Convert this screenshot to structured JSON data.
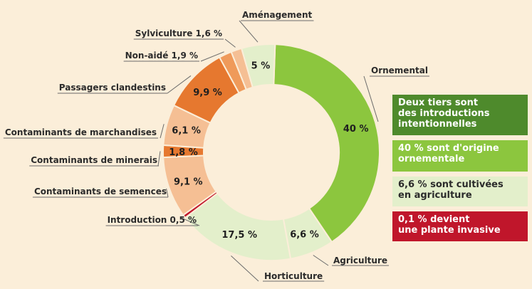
{
  "colors": {
    "background": "#fbeed9",
    "dark_green": "#4e8a2c",
    "green": "#8cc63e",
    "light_green": "#e3efcb",
    "red": "#c0162b",
    "dark_orange": "#e6782f",
    "orange": "#ef9a5a",
    "light_orange": "#f5bf94",
    "label_text": "#2b2b2b"
  },
  "chart_data": {
    "type": "pie",
    "variant": "donut",
    "title": "",
    "slices": [
      {
        "category": "Ornemental",
        "value": 40,
        "label": "40 %",
        "outer_label": "Ornemental",
        "color": "#8cc63e",
        "label_color": "#1f1f1f"
      },
      {
        "category": "Agriculture",
        "value": 6.6,
        "label": "6,6 %",
        "outer_label": "Agriculture",
        "color": "#e3efcb",
        "label_color": "#1f1f1f"
      },
      {
        "category": "Horticulture",
        "value": 17.5,
        "label": "17,5 %",
        "outer_label": "Horticulture",
        "color": "#e3efcb",
        "label_color": "#1f1f1f"
      },
      {
        "category": "Introduction",
        "value": 0.5,
        "label": "",
        "outer_label": "Introduction  0,5 %",
        "color": "#c0162b",
        "label_color": "#1f1f1f"
      },
      {
        "category": "Contaminants de semences",
        "value": 9.1,
        "label": "9,1 %",
        "outer_label": "Contaminants de semences",
        "color": "#f5bf94",
        "label_color": "#1f1f1f"
      },
      {
        "category": "Contaminants de minerais",
        "value": 1.8,
        "label": "1,8 %",
        "outer_label": "Contaminants de minerais",
        "color": "#e6782f",
        "label_color": "#1f1f1f"
      },
      {
        "category": "Contaminants de marchandises",
        "value": 6.1,
        "label": "6,1 %",
        "outer_label": "Contaminants de marchandises",
        "color": "#f5bf94",
        "label_color": "#1f1f1f"
      },
      {
        "category": "Passagers clandestins",
        "value": 9.9,
        "label": "9,9 %",
        "outer_label": "Passagers clandestins",
        "color": "#e6782f",
        "label_color": "#1f1f1f"
      },
      {
        "category": "Non-aidé",
        "value": 1.9,
        "label": "",
        "outer_label": "Non-aidé  1,9 %",
        "color": "#ef9a5a",
        "label_color": "#1f1f1f"
      },
      {
        "category": "Sylviculture",
        "value": 1.6,
        "label": "",
        "outer_label": "Sylviculture  1,6 %",
        "color": "#f5bf94",
        "label_color": "#1f1f1f"
      },
      {
        "category": "Aménagement",
        "value": 5,
        "label": "5 %",
        "outer_label": "Aménagement",
        "color": "#e3efcb",
        "label_color": "#1f1f1f"
      }
    ],
    "legend": [
      {
        "text": "Deux tiers sont\ndes introductions\nintentionnelles",
        "color": "#4e8a2c"
      },
      {
        "text": "40 % sont d'origine\nornementale",
        "color": "#8cc63e"
      },
      {
        "text": "6,6 % sont cultivées\nen agriculture",
        "color": "#e3efcb"
      },
      {
        "text": "0,1 % devient\nune plante invasive",
        "color": "#c0162b"
      }
    ],
    "legend_placement": "right"
  }
}
